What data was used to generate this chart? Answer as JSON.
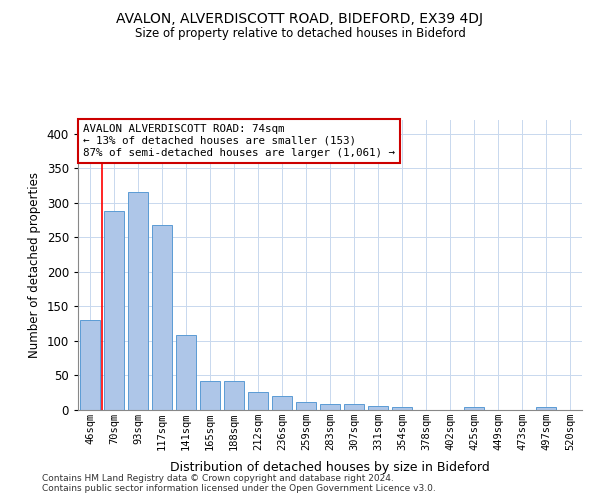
{
  "title1": "AVALON, ALVERDISCOTT ROAD, BIDEFORD, EX39 4DJ",
  "title2": "Size of property relative to detached houses in Bideford",
  "xlabel": "Distribution of detached houses by size in Bideford",
  "ylabel": "Number of detached properties",
  "footer1": "Contains HM Land Registry data © Crown copyright and database right 2024.",
  "footer2": "Contains public sector information licensed under the Open Government Licence v3.0.",
  "categories": [
    "46sqm",
    "70sqm",
    "93sqm",
    "117sqm",
    "141sqm",
    "165sqm",
    "188sqm",
    "212sqm",
    "236sqm",
    "259sqm",
    "283sqm",
    "307sqm",
    "331sqm",
    "354sqm",
    "378sqm",
    "402sqm",
    "425sqm",
    "449sqm",
    "473sqm",
    "497sqm",
    "520sqm"
  ],
  "values": [
    130,
    288,
    315,
    268,
    108,
    42,
    42,
    26,
    20,
    11,
    9,
    8,
    6,
    4,
    0,
    0,
    4,
    0,
    0,
    4,
    0
  ],
  "bar_color": "#aec6e8",
  "bar_edge_color": "#5b9bd5",
  "red_line_x": 0.5,
  "annotation_title": "AVALON ALVERDISCOTT ROAD: 74sqm",
  "annotation_line2": "← 13% of detached houses are smaller (153)",
  "annotation_line3": "87% of semi-detached houses are larger (1,061) →",
  "annotation_box_color": "#ffffff",
  "annotation_box_edge": "#cc0000",
  "ylim": [
    0,
    420
  ],
  "background_color": "#ffffff",
  "grid_color": "#c8d8ee"
}
